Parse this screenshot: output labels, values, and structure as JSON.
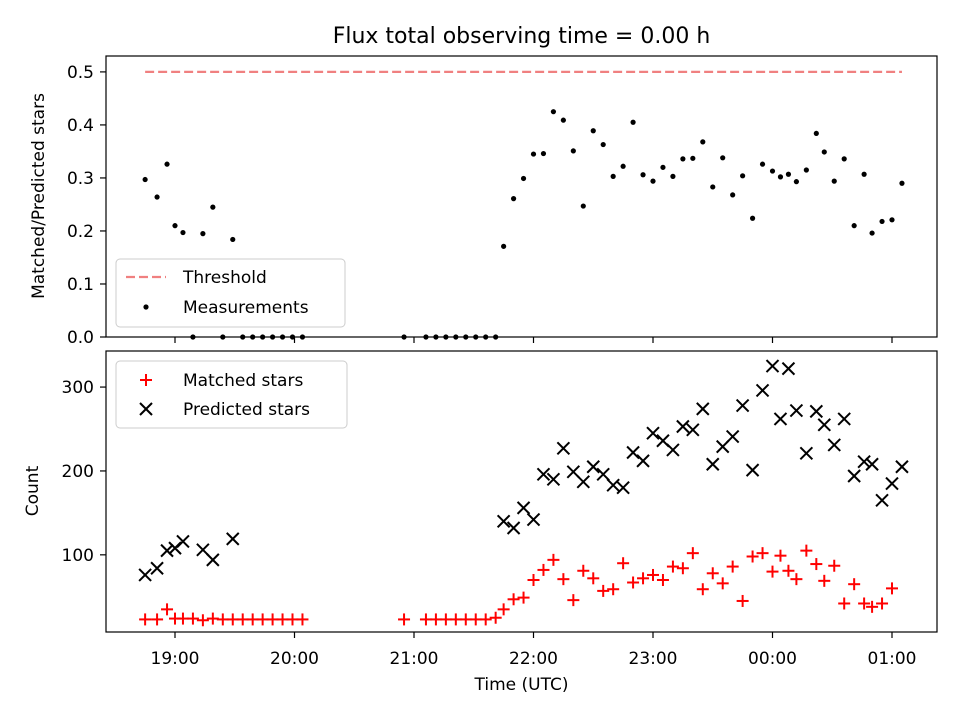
{
  "title": "Flux total observing time = 0.00 h",
  "colors": {
    "threshold": "#f08080",
    "measurements": "#000000",
    "matched": "#ff0000",
    "predicted": "#000000"
  },
  "chart_data": [
    {
      "type": "scatter",
      "ylabel": "Matched/Predicted stars",
      "ylim": [
        0,
        0.53
      ],
      "yticks": [
        "0.0",
        "0.1",
        "0.2",
        "0.3",
        "0.4",
        "0.5"
      ],
      "grid": false,
      "legend_position": "lower-left",
      "legend": [
        "Threshold",
        "Measurements"
      ],
      "threshold": {
        "name": "Threshold",
        "value": 0.5,
        "x_range": [
          "18:45",
          "01:05"
        ]
      },
      "series": [
        {
          "name": "Measurements",
          "points": [
            [
              "18:45",
              0.297
            ],
            [
              "18:51",
              0.264
            ],
            [
              "18:56",
              0.326
            ],
            [
              "19:00",
              0.21
            ],
            [
              "19:04",
              0.197
            ],
            [
              "19:09",
              0.0
            ],
            [
              "19:14",
              0.195
            ],
            [
              "19:19",
              0.245
            ],
            [
              "19:24",
              0.0
            ],
            [
              "19:29",
              0.184
            ],
            [
              "19:34",
              0.0
            ],
            [
              "19:39",
              0.0
            ],
            [
              "19:44",
              0.0
            ],
            [
              "19:49",
              0.0
            ],
            [
              "19:54",
              0.0
            ],
            [
              "19:59",
              0.0
            ],
            [
              "20:04",
              0.0
            ],
            [
              "20:55",
              0.0
            ],
            [
              "21:06",
              0.0
            ],
            [
              "21:11",
              0.0
            ],
            [
              "21:16",
              0.0
            ],
            [
              "21:21",
              0.0
            ],
            [
              "21:26",
              0.0
            ],
            [
              "21:31",
              0.0
            ],
            [
              "21:36",
              0.0
            ],
            [
              "21:41",
              0.0
            ],
            [
              "21:45",
              0.171
            ],
            [
              "21:50",
              0.261
            ],
            [
              "21:55",
              0.299
            ],
            [
              "22:00",
              0.345
            ],
            [
              "22:05",
              0.346
            ],
            [
              "22:10",
              0.425
            ],
            [
              "22:15",
              0.409
            ],
            [
              "22:20",
              0.351
            ],
            [
              "22:25",
              0.247
            ],
            [
              "22:30",
              0.389
            ],
            [
              "22:35",
              0.363
            ],
            [
              "22:40",
              0.303
            ],
            [
              "22:45",
              0.322
            ],
            [
              "22:50",
              0.405
            ],
            [
              "22:55",
              0.306
            ],
            [
              "23:00",
              0.294
            ],
            [
              "23:05",
              0.32
            ],
            [
              "23:10",
              0.303
            ],
            [
              "23:15",
              0.336
            ],
            [
              "23:20",
              0.337
            ],
            [
              "23:25",
              0.368
            ],
            [
              "23:30",
              0.283
            ],
            [
              "23:35",
              0.338
            ],
            [
              "23:40",
              0.268
            ],
            [
              "23:45",
              0.304
            ],
            [
              "23:50",
              0.224
            ],
            [
              "23:55",
              0.326
            ],
            [
              "00:00",
              0.313
            ],
            [
              "00:04",
              0.302
            ],
            [
              "00:08",
              0.307
            ],
            [
              "00:12",
              0.293
            ],
            [
              "00:17",
              0.315
            ],
            [
              "00:22",
              0.384
            ],
            [
              "00:26",
              0.349
            ],
            [
              "00:31",
              0.294
            ],
            [
              "00:36",
              0.336
            ],
            [
              "00:41",
              0.21
            ],
            [
              "00:46",
              0.307
            ],
            [
              "00:50",
              0.196
            ],
            [
              "00:55",
              0.218
            ],
            [
              "01:00",
              0.221
            ],
            [
              "01:05",
              0.29
            ]
          ]
        }
      ]
    },
    {
      "type": "scatter",
      "xlabel": "Time (UTC)",
      "ylabel": "Count",
      "ylim": [
        8,
        343
      ],
      "yticks": [
        "100",
        "200",
        "300"
      ],
      "xticks": [
        "19:00",
        "20:00",
        "21:00",
        "22:00",
        "23:00",
        "00:00",
        "01:00"
      ],
      "grid": false,
      "legend_position": "upper-left",
      "legend": [
        "Matched stars",
        "Predicted stars"
      ],
      "series": [
        {
          "name": "Matched stars",
          "marker": "+",
          "points": [
            [
              "18:45",
              23
            ],
            [
              "18:51",
              23
            ],
            [
              "18:56",
              35
            ],
            [
              "19:00",
              24
            ],
            [
              "19:04",
              24
            ],
            [
              "19:09",
              24
            ],
            [
              "19:14",
              22
            ],
            [
              "19:19",
              24
            ],
            [
              "19:24",
              23
            ],
            [
              "19:29",
              23
            ],
            [
              "19:34",
              23
            ],
            [
              "19:39",
              23
            ],
            [
              "19:44",
              23
            ],
            [
              "19:49",
              23
            ],
            [
              "19:54",
              23
            ],
            [
              "19:59",
              23
            ],
            [
              "20:04",
              23
            ],
            [
              "20:55",
              23
            ],
            [
              "21:06",
              23
            ],
            [
              "21:11",
              23
            ],
            [
              "21:16",
              23
            ],
            [
              "21:21",
              23
            ],
            [
              "21:26",
              23
            ],
            [
              "21:31",
              23
            ],
            [
              "21:36",
              23
            ],
            [
              "21:41",
              25
            ],
            [
              "21:45",
              35
            ],
            [
              "21:50",
              47
            ],
            [
              "21:55",
              49
            ],
            [
              "22:00",
              70
            ],
            [
              "22:05",
              82
            ],
            [
              "22:10",
              94
            ],
            [
              "22:15",
              71
            ],
            [
              "22:20",
              46
            ],
            [
              "22:25",
              81
            ],
            [
              "22:30",
              72
            ],
            [
              "22:35",
              57
            ],
            [
              "22:40",
              59
            ],
            [
              "22:45",
              90
            ],
            [
              "22:50",
              67
            ],
            [
              "22:55",
              72
            ],
            [
              "23:00",
              76
            ],
            [
              "23:05",
              70
            ],
            [
              "23:10",
              86
            ],
            [
              "23:15",
              84
            ],
            [
              "23:20",
              102
            ],
            [
              "23:25",
              59
            ],
            [
              "23:30",
              78
            ],
            [
              "23:35",
              66
            ],
            [
              "23:40",
              86
            ],
            [
              "23:45",
              45
            ],
            [
              "23:50",
              98
            ],
            [
              "23:55",
              102
            ],
            [
              "00:00",
              80
            ],
            [
              "00:04",
              99
            ],
            [
              "00:08",
              81
            ],
            [
              "00:12",
              71
            ],
            [
              "00:17",
              105
            ],
            [
              "00:22",
              89
            ],
            [
              "00:26",
              69
            ],
            [
              "00:31",
              87
            ],
            [
              "00:36",
              42
            ],
            [
              "00:41",
              65
            ],
            [
              "00:46",
              42
            ],
            [
              "00:50",
              38
            ],
            [
              "00:55",
              42
            ],
            [
              "01:00",
              60
            ]
          ]
        },
        {
          "name": "Predicted stars",
          "marker": "x",
          "points": [
            [
              "18:45",
              76
            ],
            [
              "18:51",
              84
            ],
            [
              "18:56",
              105
            ],
            [
              "19:00",
              108
            ],
            [
              "19:04",
              116
            ],
            [
              "19:14",
              106
            ],
            [
              "19:19",
              94
            ],
            [
              "19:29",
              119
            ],
            [
              "21:45",
              140
            ],
            [
              "21:50",
              132
            ],
            [
              "21:55",
              156
            ],
            [
              "22:00",
              142
            ],
            [
              "22:05",
              196
            ],
            [
              "22:10",
              190
            ],
            [
              "22:15",
              227
            ],
            [
              "22:20",
              199
            ],
            [
              "22:25",
              187
            ],
            [
              "22:30",
              205
            ],
            [
              "22:35",
              196
            ],
            [
              "22:40",
              183
            ],
            [
              "22:45",
              180
            ],
            [
              "22:50",
              222
            ],
            [
              "22:55",
              212
            ],
            [
              "23:00",
              245
            ],
            [
              "23:05",
              236
            ],
            [
              "23:10",
              225
            ],
            [
              "23:15",
              253
            ],
            [
              "23:20",
              249
            ],
            [
              "23:25",
              274
            ],
            [
              "23:30",
              208
            ],
            [
              "23:35",
              229
            ],
            [
              "23:40",
              241
            ],
            [
              "23:45",
              278
            ],
            [
              "23:50",
              201
            ],
            [
              "23:55",
              296
            ],
            [
              "00:00",
              325
            ],
            [
              "00:04",
              262
            ],
            [
              "00:08",
              322
            ],
            [
              "00:12",
              272
            ],
            [
              "00:17",
              221
            ],
            [
              "00:22",
              271
            ],
            [
              "00:26",
              255
            ],
            [
              "00:31",
              231
            ],
            [
              "00:36",
              262
            ],
            [
              "00:41",
              194
            ],
            [
              "00:46",
              211
            ],
            [
              "00:50",
              208
            ],
            [
              "00:55",
              165
            ],
            [
              "01:00",
              185
            ],
            [
              "01:05",
              205
            ]
          ]
        }
      ]
    }
  ]
}
